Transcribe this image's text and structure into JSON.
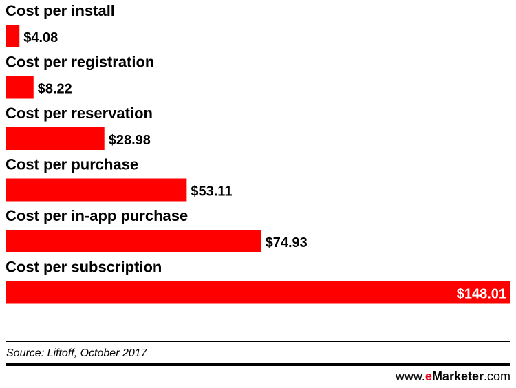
{
  "chart_data": {
    "type": "bar",
    "orientation": "horizontal",
    "categories": [
      "Cost per install",
      "Cost per registration",
      "Cost per reservation",
      "Cost per purchase",
      "Cost per in-app purchase",
      "Cost per subscription"
    ],
    "values": [
      4.08,
      8.22,
      28.98,
      53.11,
      74.93,
      148.01
    ],
    "value_labels": [
      "$4.08",
      "$8.22",
      "$28.98",
      "$53.11",
      "$74.93",
      "$148.01"
    ],
    "title": "",
    "xlabel": "",
    "ylabel": "",
    "xlim": [
      0,
      148.01
    ],
    "grid": false,
    "legend": "none",
    "bar_color": "#ff0000"
  },
  "footer": {
    "source": "Source: Liftoff, October 2017",
    "brand_prefix": "www.",
    "brand_e": "e",
    "brand_name": "Marketer",
    "brand_suffix": ".com"
  },
  "colors": {
    "bar": "#ff0000",
    "brand_accent": "#e4001b",
    "text": "#000000"
  }
}
